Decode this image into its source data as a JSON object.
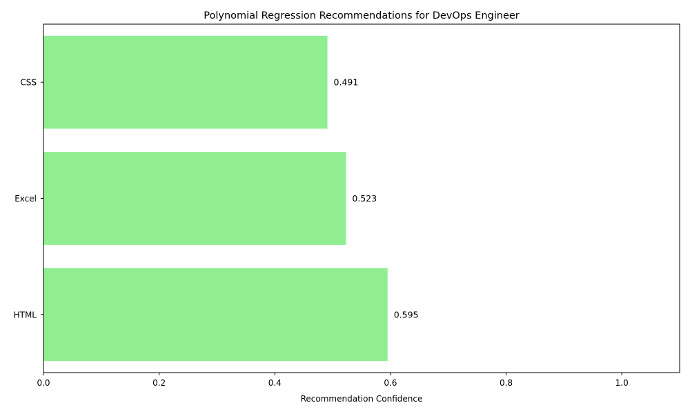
{
  "chart_data": {
    "type": "bar",
    "orientation": "horizontal",
    "title": "Polynomial Regression Recommendations for DevOps Engineer",
    "xlabel": "Recommendation Confidence",
    "ylabel": "",
    "categories": [
      "HTML",
      "Excel",
      "CSS"
    ],
    "values": [
      0.595,
      0.523,
      0.491
    ],
    "data_labels": [
      "0.595",
      "0.523",
      "0.491"
    ],
    "xlim": [
      0,
      1.1
    ],
    "x_ticks": [
      0.0,
      0.2,
      0.4,
      0.6,
      0.8,
      1.0
    ],
    "x_tick_labels": [
      "0.0",
      "0.2",
      "0.4",
      "0.6",
      "0.8",
      "1.0"
    ],
    "grid": false,
    "colors": {
      "bar": "#90ee90",
      "axis": "#000000",
      "text": "#000000"
    }
  }
}
